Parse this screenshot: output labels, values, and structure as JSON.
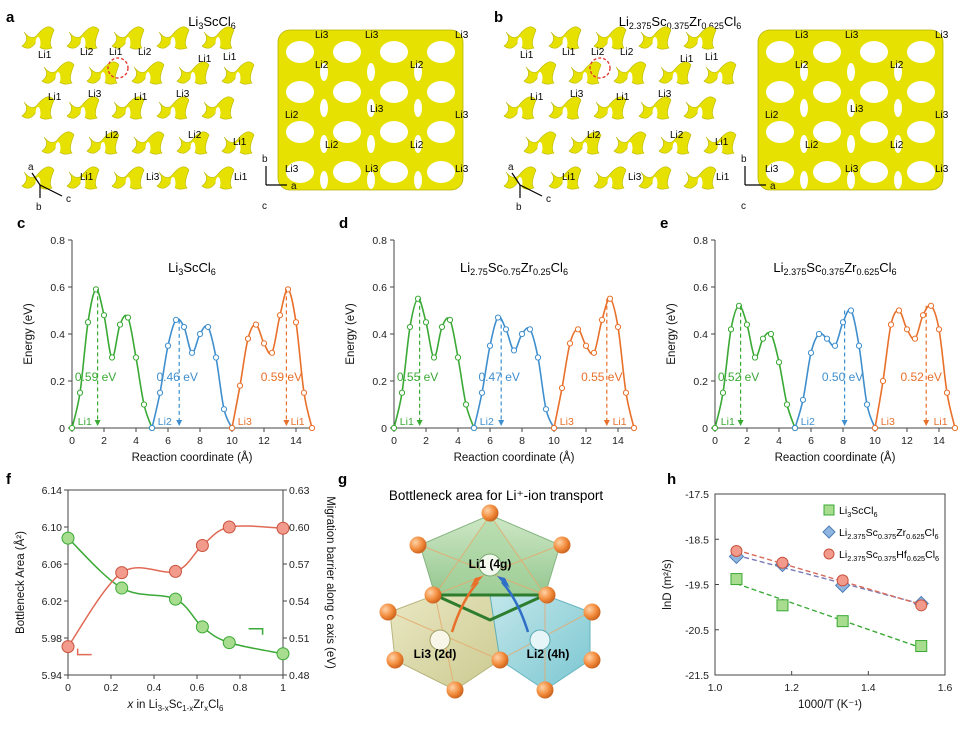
{
  "panel_a": {
    "letter": "a",
    "formula": {
      "base": "Li",
      "s1": "3",
      "mid": "ScCl",
      "s2": "6"
    },
    "view1_labels": [
      "Li2",
      "Li1",
      "Li1",
      "Li2",
      "Li1",
      "Li1",
      "Li3",
      "Li1",
      "Li3",
      "Li1",
      "Li2",
      "Li2",
      "Li1",
      "Li1",
      "Li3",
      "Li1"
    ],
    "view2_labels": [
      "Li3",
      "Li3",
      "Li3",
      "Li2",
      "Li2",
      "Li3",
      "Li2",
      "Li3",
      "Li2",
      "Li2",
      "Li3",
      "Li3",
      "Li3"
    ],
    "axes1": [
      "a",
      "b",
      "c"
    ],
    "axes2": [
      "b",
      "c",
      "a"
    ]
  },
  "panel_b": {
    "letter": "b",
    "formula": {
      "p1": "Li",
      "s1": "2.375",
      "p2": "Sc",
      "s2": "0.375",
      "p3": "Zr",
      "s3": "0.625",
      "p4": "Cl",
      "s4": "6"
    },
    "view1_labels": [
      "Li1",
      "Li2",
      "Li1",
      "Li2",
      "Li1",
      "Li1",
      "Li3",
      "Li1",
      "Li3",
      "Li1",
      "Li2",
      "Li2",
      "Li1",
      "Li1",
      "Li3",
      "Li1"
    ],
    "view2_labels": [
      "Li3",
      "Li3",
      "Li3",
      "Li2",
      "Li2",
      "Li3",
      "Li2",
      "Li3",
      "Li2",
      "Li2",
      "Li3",
      "Li3",
      "Li3"
    ],
    "axes1": [
      "a",
      "b",
      "c"
    ],
    "axes2": [
      "b",
      "c",
      "a"
    ]
  },
  "colors": {
    "green": "#3aa935",
    "blue": "#3f8fce",
    "orange": "#e8702a",
    "red_line": "#e06a55",
    "yellow": "#e6e100"
  },
  "chart_data": [
    {
      "panel": "c",
      "type": "line",
      "title": {
        "base": "Li",
        "s1": "3",
        "mid": "ScCl",
        "s2": "6"
      },
      "xlabel": "Reaction coordinate (Å)",
      "ylabel": "Energy (eV)",
      "xlim": [
        0,
        15
      ],
      "ylim": [
        0,
        0.8
      ],
      "xticks": [
        "0",
        "2",
        "4",
        "6",
        "8",
        "10",
        "12",
        "14"
      ],
      "yticks": [
        "0",
        "0.2",
        "0.4",
        "0.6",
        "0.8"
      ],
      "series": [
        {
          "x": [
            0,
            0.5,
            1,
            1.5,
            2,
            2.5,
            3,
            3.5,
            4,
            4.5,
            5
          ],
          "y": [
            0,
            0.15,
            0.45,
            0.59,
            0.48,
            0.3,
            0.44,
            0.47,
            0.3,
            0.1,
            0
          ]
        },
        {
          "x": [
            5,
            5.5,
            6,
            6.5,
            7,
            7.5,
            8,
            8.5,
            9,
            9.5,
            10
          ],
          "y": [
            0,
            0.15,
            0.35,
            0.46,
            0.43,
            0.32,
            0.4,
            0.43,
            0.3,
            0.08,
            0
          ]
        },
        {
          "x": [
            10,
            10.5,
            11,
            11.5,
            12,
            12.5,
            13,
            13.5,
            14,
            14.5,
            15
          ],
          "y": [
            0,
            0.18,
            0.38,
            0.44,
            0.36,
            0.32,
            0.48,
            0.59,
            0.45,
            0.15,
            0
          ]
        }
      ],
      "annotations": [
        {
          "text": "0.59 eV",
          "x": 1.6,
          "y": 0.59,
          "series": 0
        },
        {
          "text": "0.46 eV",
          "x": 6.7,
          "y": 0.46,
          "series": 1
        },
        {
          "text": "0.59 eV",
          "x": 13.4,
          "y": 0.59,
          "series": 2
        }
      ],
      "site_labels": [
        {
          "text": "Li1",
          "x": 0.8,
          "series": 0
        },
        {
          "text": "Li2",
          "x": 5.8,
          "series": 1
        },
        {
          "text": "Li3",
          "x": 10.8,
          "series": 2
        },
        {
          "text": "Li1",
          "x": 14.1,
          "series": 2
        }
      ]
    },
    {
      "panel": "d",
      "type": "line",
      "title": {
        "p1": "Li",
        "s1": "2.75",
        "p2": "Sc",
        "s2": "0.75",
        "p3": "Zr",
        "s3": "0.25",
        "p4": "Cl",
        "s4": "6"
      },
      "xlabel": "Reaction coordinate (Å)",
      "ylabel": "Energy (eV)",
      "xlim": [
        0,
        15
      ],
      "ylim": [
        0,
        0.8
      ],
      "xticks": [
        "0",
        "2",
        "4",
        "6",
        "8",
        "10",
        "12",
        "14"
      ],
      "yticks": [
        "0",
        "0.2",
        "0.4",
        "0.6",
        "0.8"
      ],
      "series": [
        {
          "x": [
            0,
            0.5,
            1,
            1.5,
            2,
            2.5,
            3,
            3.5,
            4,
            4.5,
            5
          ],
          "y": [
            0,
            0.15,
            0.43,
            0.55,
            0.45,
            0.3,
            0.43,
            0.46,
            0.3,
            0.1,
            0
          ]
        },
        {
          "x": [
            5,
            5.5,
            6,
            6.5,
            7,
            7.5,
            8,
            8.5,
            9,
            9.5,
            10
          ],
          "y": [
            0,
            0.15,
            0.35,
            0.47,
            0.42,
            0.33,
            0.4,
            0.42,
            0.3,
            0.08,
            0
          ]
        },
        {
          "x": [
            10,
            10.5,
            11,
            11.5,
            12,
            12.5,
            13,
            13.5,
            14,
            14.5,
            15
          ],
          "y": [
            0,
            0.17,
            0.36,
            0.42,
            0.35,
            0.32,
            0.46,
            0.55,
            0.43,
            0.15,
            0
          ]
        }
      ],
      "annotations": [
        {
          "text": "0.55 eV",
          "x": 1.6,
          "y": 0.55,
          "series": 0
        },
        {
          "text": "0.47 eV",
          "x": 6.7,
          "y": 0.47,
          "series": 1
        },
        {
          "text": "0.55 eV",
          "x": 13.3,
          "y": 0.55,
          "series": 2
        }
      ],
      "site_labels": [
        {
          "text": "Li1",
          "x": 0.8,
          "series": 0
        },
        {
          "text": "Li2",
          "x": 5.8,
          "series": 1
        },
        {
          "text": "Li3",
          "x": 10.8,
          "series": 2
        },
        {
          "text": "Li1",
          "x": 14.1,
          "series": 2
        }
      ]
    },
    {
      "panel": "e",
      "type": "line",
      "title": {
        "p1": "Li",
        "s1": "2.375",
        "p2": "Sc",
        "s2": "0.375",
        "p3": "Zr",
        "s3": "0.625",
        "p4": "Cl",
        "s4": "6"
      },
      "xlabel": "Reaction coordinate (Å)",
      "ylabel": "Energy (eV)",
      "xlim": [
        0,
        15
      ],
      "ylim": [
        0,
        0.8
      ],
      "xticks": [
        "0",
        "2",
        "4",
        "6",
        "8",
        "10",
        "12",
        "14"
      ],
      "yticks": [
        "0",
        "0.2",
        "0.4",
        "0.6",
        "0.8"
      ],
      "series": [
        {
          "x": [
            0,
            0.5,
            1,
            1.5,
            2,
            2.5,
            3,
            3.5,
            4,
            4.5,
            5
          ],
          "y": [
            0,
            0.15,
            0.42,
            0.52,
            0.44,
            0.3,
            0.38,
            0.4,
            0.28,
            0.1,
            0
          ]
        },
        {
          "x": [
            5,
            5.5,
            6,
            6.5,
            7,
            7.5,
            8,
            8.5,
            9,
            9.5,
            10
          ],
          "y": [
            0,
            0.12,
            0.32,
            0.4,
            0.38,
            0.35,
            0.45,
            0.5,
            0.35,
            0.1,
            0
          ]
        },
        {
          "x": [
            10,
            10.5,
            11,
            11.5,
            12,
            12.5,
            13,
            13.5,
            14,
            14.5,
            15
          ],
          "y": [
            0,
            0.2,
            0.44,
            0.5,
            0.42,
            0.38,
            0.48,
            0.52,
            0.42,
            0.15,
            0
          ]
        }
      ],
      "annotations": [
        {
          "text": "0.52 eV",
          "x": 1.6,
          "y": 0.52,
          "series": 0
        },
        {
          "text": "0.50 eV",
          "x": 8.1,
          "y": 0.5,
          "series": 1
        },
        {
          "text": "0.52 eV",
          "x": 13.2,
          "y": 0.52,
          "series": 2
        }
      ],
      "site_labels": [
        {
          "text": "Li1",
          "x": 0.8,
          "series": 0
        },
        {
          "text": "Li2",
          "x": 5.8,
          "series": 1
        },
        {
          "text": "Li3",
          "x": 10.8,
          "series": 2
        },
        {
          "text": "Li1",
          "x": 14.1,
          "series": 2
        }
      ]
    },
    {
      "panel": "f",
      "type": "line",
      "xlabel": {
        "pre": "x in Li",
        "s1": "3-x",
        "p2": "Sc",
        "s2": "1-x",
        "p3": "Zr",
        "s3": "x",
        "p4": "Cl",
        "s4": "6"
      },
      "ylabel": "Bottleneck Area (Å²)",
      "y2label": "Migration barrier along c axis (eV)",
      "xlim": [
        0,
        1
      ],
      "ylim": [
        5.94,
        6.14
      ],
      "y2lim": [
        0.48,
        0.63
      ],
      "xticks": [
        "0",
        "0.2",
        "0.4",
        "0.6",
        "0.8",
        "1"
      ],
      "yticks": [
        "5.94",
        "5.98",
        "6.02",
        "6.06",
        "6.10",
        "6.14"
      ],
      "y2ticks": [
        "0.48",
        "0.51",
        "0.54",
        "0.57",
        "0.60",
        "0.63"
      ],
      "series": [
        {
          "name": "Bottleneck area",
          "axis": "left",
          "x": [
            0,
            0.25,
            0.5,
            0.625,
            0.75,
            1
          ],
          "y": [
            6.088,
            6.034,
            6.022,
            5.992,
            5.975,
            5.963
          ]
        },
        {
          "name": "Migration barrier",
          "axis": "right",
          "x": [
            0,
            0.25,
            0.5,
            0.625,
            0.75,
            1
          ],
          "y": [
            0.503,
            0.563,
            0.564,
            0.585,
            0.6,
            0.599
          ]
        }
      ]
    },
    {
      "panel": "h",
      "type": "scatter",
      "xlabel": "1000/T (K⁻¹)",
      "ylabel": "lnD (m²/s)",
      "xlim": [
        1.0,
        1.6
      ],
      "ylim": [
        -21.5,
        -17.5
      ],
      "xticks": [
        "1.0",
        "1.2",
        "1.4",
        "1.6"
      ],
      "yticks": [
        "-17.5",
        "-18.5",
        "-19.5",
        "-20.5",
        "-21.5"
      ],
      "series": [
        {
          "name": {
            "p1": "Li",
            "s1": "3",
            "p2": "ScCl",
            "s2": "6",
            "p3": "",
            "s3": "",
            "p4": "",
            "s4": ""
          },
          "marker": "square",
          "x": [
            1.056,
            1.176,
            1.333,
            1.538
          ],
          "y": [
            -19.38,
            -19.96,
            -20.31,
            -20.86
          ]
        },
        {
          "name": {
            "p1": "Li",
            "s1": "2.375",
            "p2": "Sc",
            "s2": "0.375",
            "p3": "Zr",
            "s3": "0.625",
            "p4": "Cl",
            "s4": "6"
          },
          "marker": "diamond",
          "x": [
            1.056,
            1.176,
            1.333,
            1.538
          ],
          "y": [
            -18.88,
            -19.06,
            -19.52,
            -19.92
          ]
        },
        {
          "name": {
            "p1": "Li",
            "s1": "2.375",
            "p2": "Sc",
            "s2": "0.375",
            "p3": "Hf",
            "s3": "0.625",
            "p4": "Cl",
            "s4": "6"
          },
          "marker": "circle",
          "x": [
            1.056,
            1.176,
            1.333,
            1.538
          ],
          "y": [
            -18.76,
            -19.02,
            -19.41,
            -19.96
          ]
        }
      ]
    }
  ],
  "panel_g": {
    "letter": "g",
    "title": "Bottleneck area for Li⁺-ion transport",
    "site_labels": [
      "Li1 (4g)",
      "Li3 (2d)",
      "Li2 (4h)"
    ]
  }
}
